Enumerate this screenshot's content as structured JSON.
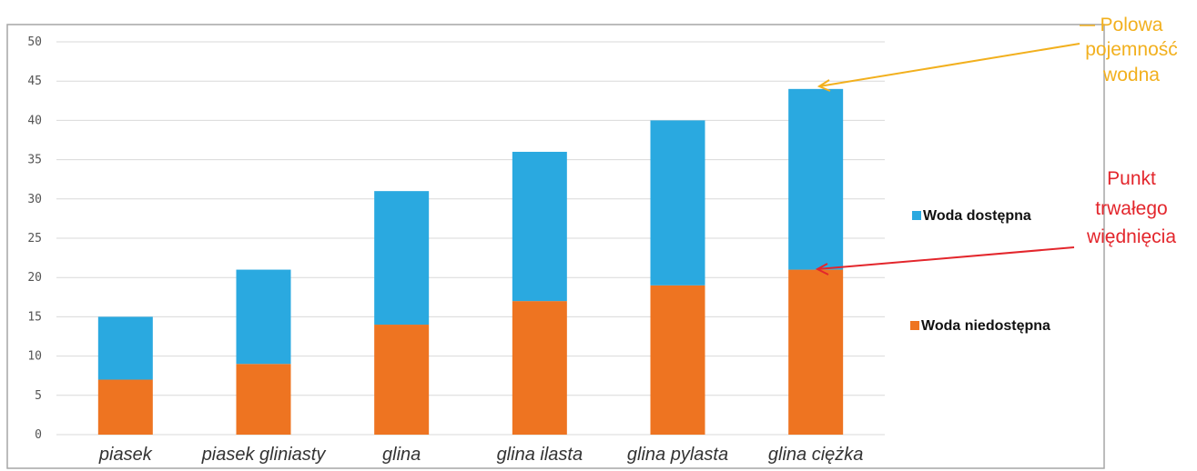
{
  "colors": {
    "available": "#2aa9e0",
    "unavailable": "#ee7421",
    "field_capacity": "#f2b01e",
    "wilting_point": "#e3262c",
    "grid": "#d9d9d9",
    "frame": "#a6a6a6"
  },
  "chart_data": {
    "type": "bar",
    "stacked": true,
    "categories": [
      "piasek",
      "piasek gliniasty",
      "glina",
      "glina ilasta",
      "glina pylasta",
      "glina ciężka"
    ],
    "series": [
      {
        "name": "Woda niedostępna",
        "values": [
          7,
          9,
          14,
          17,
          19,
          21
        ]
      },
      {
        "name": "Woda dostępna",
        "values": [
          8,
          12,
          17,
          19,
          21,
          23
        ]
      }
    ],
    "ylim": [
      0,
      50
    ],
    "yticks": [
      "0",
      "5",
      "10",
      "15",
      "20",
      "25",
      "30",
      "35",
      "40",
      "45",
      "50"
    ],
    "grid": true,
    "legend_position": "right",
    "annotations": [
      {
        "lines": [
          "Polowa",
          "pojemność",
          "wodna"
        ],
        "target_category": 5,
        "target_value": 44
      },
      {
        "lines": [
          "Punkt",
          "trwałego",
          "więdnięcia"
        ],
        "target_category": 5,
        "target_value": 21
      }
    ]
  }
}
